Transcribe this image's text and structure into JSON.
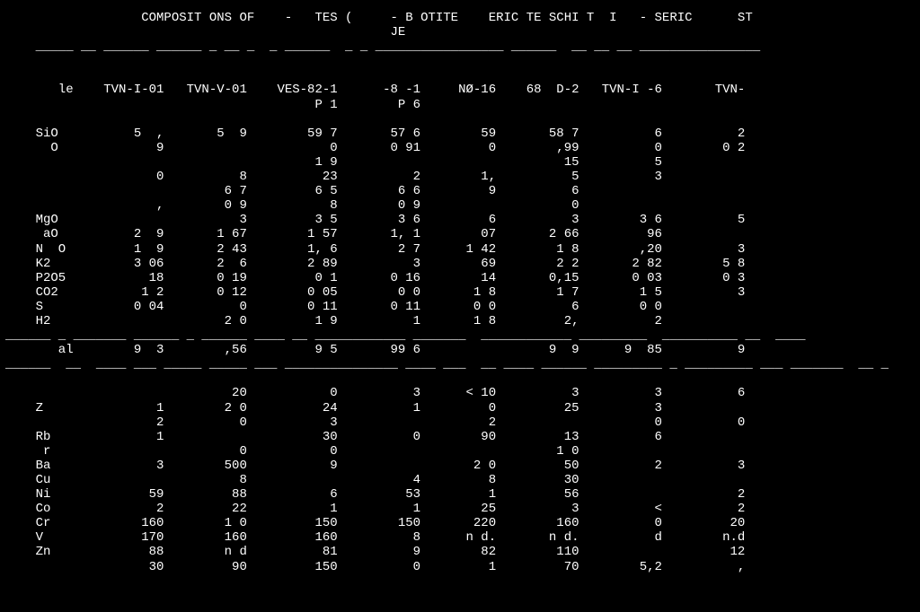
{
  "title_parts": [
    "COMPOSIT ONS OF",
    "-",
    "TES (",
    "- B OTITE",
    "ERIC TE SCHI T",
    "I",
    "- SERIC",
    "ST"
  ],
  "subtitle": "JE",
  "dash_row_top": "_____ __ ______ ______ _ __ _  _ ______  _ _ _________________ ______  __ __ __ ________________",
  "columns": {
    "samples_label": "le",
    "headers": [
      "TVN-I-01",
      "TVN-V-01",
      "VES-82-1",
      "-8 -1",
      "NØ-16",
      "68  D-2",
      "TVN-I -6",
      "TVN-"
    ],
    "sub_headers": [
      "",
      "",
      "P 1",
      "P 6",
      "",
      "",
      "",
      ""
    ]
  },
  "upper_rows": [
    {
      "label": "SiO",
      "cells": [
        "5  ,",
        "5  9",
        "59 7",
        "57 6",
        "59",
        "58 7",
        "6",
        "2"
      ]
    },
    {
      "label": "  O",
      "cells": [
        "   9",
        "",
        "   0",
        "0 91",
        "0",
        "  ,99",
        "0",
        "0 2"
      ]
    },
    {
      "label": "",
      "cells": [
        "",
        "",
        "1 9",
        "",
        "",
        "15",
        "5",
        ""
      ]
    },
    {
      "label": "",
      "cells": [
        "   0",
        "   8",
        "  23",
        "2",
        "1,",
        "   5",
        "  3",
        ""
      ]
    },
    {
      "label": "",
      "cells": [
        "",
        "6 7",
        "6 5",
        "6 6",
        " 9",
        "6",
        "",
        ""
      ]
    },
    {
      "label": "",
      "cells": [
        "   ,",
        "0 9",
        "   8",
        "0 9",
        "",
        "  0",
        "",
        ""
      ]
    },
    {
      "label": "MgO",
      "cells": [
        "",
        "3",
        "3 5",
        "3 6",
        "  6",
        "3",
        "3 6",
        "  5"
      ]
    },
    {
      "label": " aO",
      "cells": [
        "2  9",
        "1 67",
        "1 57",
        "1, 1",
        " 07",
        "2 66",
        " 96",
        ""
      ]
    },
    {
      "label": "N  O",
      "cells": [
        "1  9",
        "2 43",
        "1, 6",
        "2 7",
        "1 42",
        "1 8",
        " ,20",
        "  3"
      ]
    },
    {
      "label": "K2",
      "cells": [
        "3 06",
        "2  6",
        "2 89",
        "3",
        "  69",
        "2 2",
        "2 82",
        "5 8"
      ]
    },
    {
      "label": "P2O5",
      "cells": [
        "  18",
        "0 19",
        "0 1",
        "0 16",
        "  14",
        "0,15",
        "0 03",
        "0 3"
      ]
    },
    {
      "label": "CO2",
      "cells": [
        "1 2",
        "0 12",
        "0 05",
        "0 0",
        "1 8",
        "1 7",
        "1 5",
        "  3"
      ]
    },
    {
      "label": "S",
      "cells": [
        "0 04",
        "0",
        "0 11",
        "0 11",
        "0 0",
        "   6",
        "0 0",
        ""
      ]
    },
    {
      "label": "H2",
      "cells": [
        "",
        "2 0",
        "1 9",
        "1",
        "1 8",
        "2,",
        "  2",
        ""
      ]
    }
  ],
  "dash_row_mid1": "______ _ _______ ______ _ ______ ____ __ ____________ _______  ____________ _________  __________ __  ____",
  "total_row": {
    "label": "   al",
    "cells": [
      "9  3",
      " ,56",
      "9 5",
      "99 6",
      "",
      "9  9",
      "9  85",
      "9"
    ]
  },
  "dash_row_mid2": "______  __  ____ ___ _____ _____ ___ _______________ ____ ___  __ ____ ______ _________ _ _________ ___ _______  __ _",
  "lower_rows": [
    {
      "label": "",
      "cells": [
        "",
        "20",
        "  0",
        "3",
        "< 10",
        "3",
        "3",
        "6"
      ]
    },
    {
      "label": "Z",
      "cells": [
        "1",
        "2 0",
        "24",
        "1",
        "   0",
        "25",
        "3",
        ""
      ]
    },
    {
      "label": "",
      "cells": [
        "2",
        "  0",
        "3",
        "",
        "   2",
        "",
        "  0",
        "0"
      ]
    },
    {
      "label": "Rb",
      "cells": [
        "1",
        "",
        "30",
        "0",
        "  90",
        "13",
        "6",
        ""
      ]
    },
    {
      "label": " r",
      "cells": [
        "",
        "  0",
        "0",
        "",
        "",
        "1 0",
        "",
        ""
      ]
    },
    {
      "label": "Ba",
      "cells": [
        "3",
        "500",
        "9",
        "",
        "2 0",
        "50",
        "2",
        "3"
      ]
    },
    {
      "label": "Cu",
      "cells": [
        "",
        "  8",
        "",
        "4",
        "  8",
        "30",
        "",
        ""
      ]
    },
    {
      "label": "Ni",
      "cells": [
        "59",
        " 88",
        " 6",
        "53",
        "  1",
        "56",
        "",
        " 2"
      ]
    },
    {
      "label": "Co",
      "cells": [
        "2",
        " 22",
        "1",
        "1",
        " 25",
        "3",
        "<",
        " 2"
      ]
    },
    {
      "label": "Cr",
      "cells": [
        "160",
        "1 0",
        "150",
        "150",
        "220",
        "160",
        "  0",
        "20"
      ]
    },
    {
      "label": "V",
      "cells": [
        "170",
        "160",
        "160",
        "8",
        "n d.",
        "n d.",
        "  d",
        "n.d"
      ]
    },
    {
      "label": "Zn",
      "cells": [
        "88",
        "n d",
        "81",
        "9",
        " 82",
        "110",
        "",
        "12"
      ]
    },
    {
      "label": "",
      "cells": [
        "30",
        " 90",
        "150",
        "0",
        "  1",
        "70",
        "5,2",
        " ,"
      ]
    }
  ],
  "col_positions": {
    "label_pad": 6,
    "widths": [
      11,
      11,
      12,
      11,
      10,
      11,
      11,
      11
    ]
  }
}
